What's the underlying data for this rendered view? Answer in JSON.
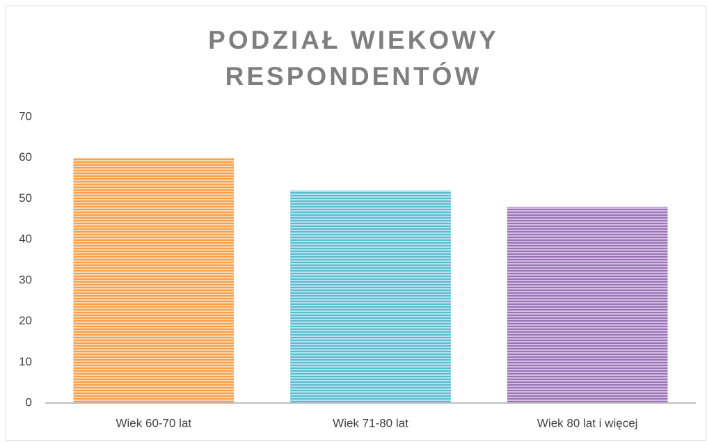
{
  "chart_data": {
    "type": "bar",
    "title": "PODZIAŁ WIEKOWY RESPONDENTÓW",
    "categories": [
      "Wiek 60-70 lat",
      "Wiek 71-80 lat",
      "Wiek 80 lat i więcej"
    ],
    "values": [
      60,
      52,
      48
    ],
    "colors": [
      "#f5a04a",
      "#5bbcd0",
      "#9b72b8"
    ],
    "ylim": [
      0,
      70
    ],
    "yticks": [
      0,
      10,
      20,
      30,
      40,
      50,
      60,
      70
    ],
    "grid": false
  }
}
